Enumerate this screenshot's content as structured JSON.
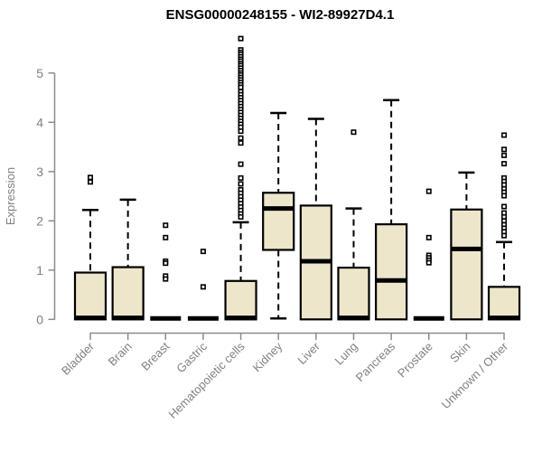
{
  "title": "ENSG00000248155 - WI2-89927D4.1",
  "ylabel": "Expression",
  "colors": {
    "box_fill": "#EDE6CB",
    "box_border": "#000000",
    "median": "#000000",
    "whisker": "#000000",
    "axis": "#8C8C8C",
    "tick_label": "#808080",
    "title": "#000000",
    "background": "#FFFFFF"
  },
  "chart_data": {
    "type": "boxplot",
    "title": "ENSG00000248155 - WI2-89927D4.1",
    "xlabel": "",
    "ylabel": "Expression",
    "ylim": [
      0,
      5.75
    ],
    "yticks": [
      0,
      1,
      2,
      3,
      4,
      5
    ],
    "grid": false,
    "legend": false,
    "categories": [
      "Bladder",
      "Brain",
      "Breast",
      "Gastric",
      "Hematopoietic cells",
      "Kidney",
      "Liver",
      "Lung",
      "Pancreas",
      "Prostate",
      "Skin",
      "Unknown / Other"
    ],
    "series": [
      {
        "name": "Bladder",
        "whisker_low": 0,
        "q1": 0,
        "median": 0.03,
        "q3": 0.95,
        "whisker_high": 2.22,
        "outliers": [
          2.79,
          2.88
        ]
      },
      {
        "name": "Brain",
        "whisker_low": 0,
        "q1": 0,
        "median": 0.03,
        "q3": 1.06,
        "whisker_high": 2.43,
        "outliers": []
      },
      {
        "name": "Breast",
        "whisker_low": 0,
        "q1": 0,
        "median": 0.02,
        "q3": 0.02,
        "whisker_high": 0.02,
        "outliers": [
          1.91,
          1.66,
          1.18,
          1.14,
          0.88,
          0.82
        ]
      },
      {
        "name": "Gastric",
        "whisker_low": 0,
        "q1": 0,
        "median": 0.02,
        "q3": 0.02,
        "whisker_high": 0.02,
        "outliers": [
          1.38,
          0.66
        ]
      },
      {
        "name": "Hematopoietic cells",
        "whisker_low": 0,
        "q1": 0,
        "median": 0.03,
        "q3": 0.78,
        "whisker_high": 1.97,
        "outliers": [
          5.7,
          5.47,
          5.42,
          5.38,
          5.33,
          5.28,
          5.24,
          5.19,
          5.15,
          5.1,
          5.05,
          5.0,
          4.96,
          4.91,
          4.86,
          4.81,
          4.76,
          4.71,
          4.62,
          4.56,
          4.5,
          4.44,
          4.38,
          4.32,
          4.26,
          4.2,
          4.14,
          4.08,
          4.02,
          3.96,
          3.9,
          3.82,
          3.68,
          3.58,
          3.15,
          2.87,
          2.75,
          2.63,
          2.56,
          2.49,
          2.42,
          2.35,
          2.28,
          2.21,
          2.14,
          2.08
        ]
      },
      {
        "name": "Kidney",
        "whisker_low": 0.02,
        "q1": 1.41,
        "median": 2.25,
        "q3": 2.57,
        "whisker_high": 4.19,
        "outliers": []
      },
      {
        "name": "Liver",
        "whisker_low": 0,
        "q1": 0,
        "median": 1.18,
        "q3": 2.31,
        "whisker_high": 4.07,
        "outliers": []
      },
      {
        "name": "Lung",
        "whisker_low": 0,
        "q1": 0,
        "median": 0.03,
        "q3": 1.05,
        "whisker_high": 2.25,
        "outliers": [
          3.8
        ]
      },
      {
        "name": "Pancreas",
        "whisker_low": 0,
        "q1": 0,
        "median": 0.79,
        "q3": 1.93,
        "whisker_high": 4.45,
        "outliers": []
      },
      {
        "name": "Prostate",
        "whisker_low": 0,
        "q1": 0,
        "median": 0.02,
        "q3": 0.02,
        "whisker_high": 0.02,
        "outliers": [
          2.6,
          1.66,
          1.3,
          1.25,
          1.2,
          1.15
        ]
      },
      {
        "name": "Skin",
        "whisker_low": 0,
        "q1": 0,
        "median": 1.43,
        "q3": 2.23,
        "whisker_high": 2.98,
        "outliers": []
      },
      {
        "name": "Unknown / Other",
        "whisker_low": 0,
        "q1": 0,
        "median": 0.03,
        "q3": 0.66,
        "whisker_high": 1.57,
        "outliers": [
          3.74,
          3.45,
          3.33,
          3.16,
          2.87,
          2.8,
          2.73,
          2.65,
          2.58,
          2.51,
          2.29,
          2.16,
          2.08,
          2.0,
          1.92,
          1.85,
          1.78,
          1.7
        ]
      }
    ]
  }
}
